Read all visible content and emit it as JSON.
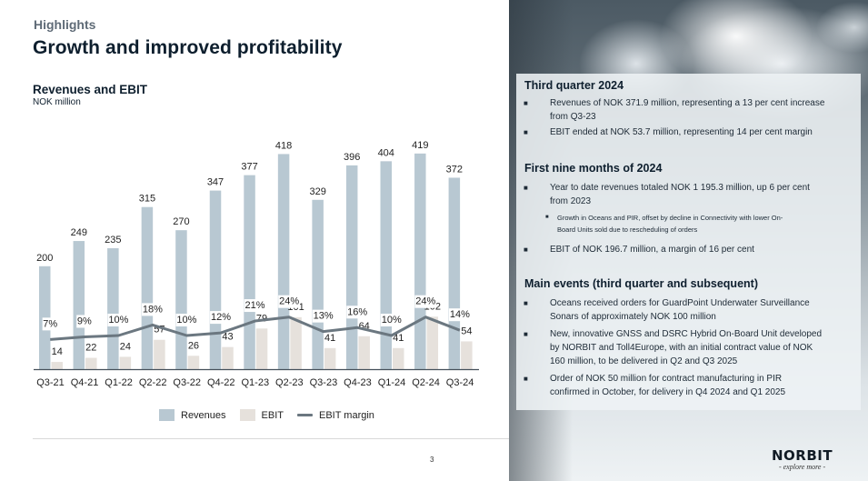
{
  "header": {
    "kicker": "Highlights",
    "title": "Growth and improved profitability"
  },
  "chart_header": {
    "title": "Revenues and EBIT",
    "unit": "NOK million"
  },
  "colors": {
    "revenues": "#b8c8d2",
    "ebit": "#e6e1dc",
    "margin_line": "#6b7780",
    "axis": "#44505a",
    "text_dark": "#0e1f2e"
  },
  "chart_data": {
    "type": "bar",
    "title": "Revenues and EBIT",
    "subtitle": "NOK million",
    "xlabel": "",
    "ylabel": "",
    "categories": [
      "Q3-21",
      "Q4-21",
      "Q1-22",
      "Q2-22",
      "Q3-22",
      "Q4-22",
      "Q1-23",
      "Q2-23",
      "Q3-23",
      "Q4-23",
      "Q1-24",
      "Q2-24",
      "Q3-24"
    ],
    "series": [
      {
        "name": "Revenues",
        "type": "bar",
        "values": [
          200,
          249,
          235,
          315,
          270,
          347,
          377,
          418,
          329,
          396,
          404,
          419,
          372
        ]
      },
      {
        "name": "EBIT",
        "type": "bar",
        "values": [
          14,
          22,
          24,
          57,
          26,
          43,
          79,
          101,
          41,
          64,
          41,
          102,
          54
        ]
      },
      {
        "name": "EBIT margin",
        "type": "line",
        "unit": "%",
        "values": [
          7,
          9,
          10,
          18,
          10,
          12,
          21,
          24,
          13,
          16,
          10,
          24,
          14
        ]
      }
    ],
    "legend": [
      "Revenues",
      "EBIT",
      "EBIT margin"
    ],
    "legend_position": "bottom",
    "grid": false,
    "ylim": [
      0,
      450
    ],
    "margin_ylim": [
      0,
      100
    ]
  },
  "legend": {
    "revenues": "Revenues",
    "ebit": "EBIT",
    "margin": "EBIT margin"
  },
  "footer": {
    "page_number": "3"
  },
  "sections": [
    {
      "heading": "Third quarter 2024",
      "bullets": [
        {
          "lines": [
            "Revenues of NOK 371.9 million, representing a 13 per cent increase",
            "from Q3-23"
          ]
        },
        {
          "lines": [
            "EBIT ended at NOK 53.7 million, representing 14 per cent margin"
          ]
        }
      ]
    },
    {
      "heading": "First nine months of 2024",
      "bullets": [
        {
          "lines": [
            "Year to date revenues totaled NOK 1 195.3 million, up 6 per cent",
            "from 2023"
          ]
        },
        {
          "sub": true,
          "lines": [
            "Growth in Oceans and PIR, offset by decline in Connectivity with lower On-",
            "Board Units sold due to rescheduling of orders"
          ]
        },
        {
          "lines": [
            "EBIT of NOK 196.7 million, a margin of 16 per cent"
          ]
        }
      ]
    },
    {
      "heading": "Main events (third quarter and subsequent)",
      "bullets": [
        {
          "lines": [
            "Oceans received orders for GuardPoint Underwater Surveillance",
            "Sonars of approximately NOK 100 million"
          ]
        },
        {
          "lines": [
            "New, innovative GNSS and DSRC Hybrid On-Board Unit developed",
            "by NORBIT and Toll4Europe, with an initial contract value of NOK",
            "160 million, to be delivered in Q2 and Q3 2025"
          ]
        },
        {
          "lines": [
            "Order of NOK 50 million for contract manufacturing in PIR",
            "confirmed in October, for delivery in Q4 2024 and Q1 2025"
          ]
        }
      ]
    }
  ],
  "logo": {
    "name": "NORBIT",
    "tagline": "- explore more -"
  }
}
